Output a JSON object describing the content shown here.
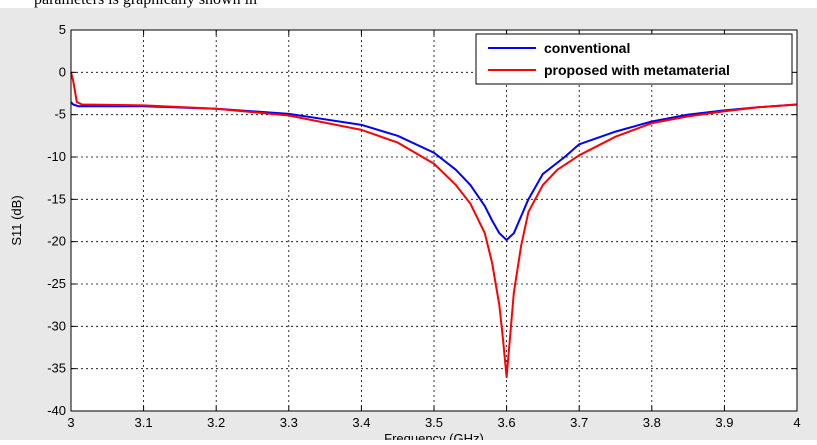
{
  "top_text": "parameters is graphically shown in",
  "chart_data": {
    "type": "line",
    "title": "",
    "xlabel": "Frequency (GHz)",
    "ylabel": "S11 (dB)",
    "xlim": [
      3,
      4
    ],
    "ylim": [
      -40,
      5
    ],
    "xticks": [
      3,
      3.1,
      3.2,
      3.3,
      3.4,
      3.5,
      3.6,
      3.7,
      3.8,
      3.9,
      4
    ],
    "xtick_labels": [
      "3",
      "3.1",
      "3.2",
      "3.3",
      "3.4",
      "3.5",
      "3.6",
      "3.7",
      "3.8",
      "3.9",
      "4"
    ],
    "yticks": [
      5,
      0,
      -5,
      -10,
      -15,
      -20,
      -25,
      -30,
      -35,
      -40
    ],
    "ytick_labels": [
      "5",
      "0",
      "-5",
      "-10",
      "-15",
      "-20",
      "-25",
      "-30",
      "-35",
      "-40"
    ],
    "grid": true,
    "legend_position": "top-right",
    "series": [
      {
        "name": "conventional",
        "color": "#0000ff",
        "x": [
          3.0,
          3.003,
          3.01,
          3.1,
          3.2,
          3.3,
          3.4,
          3.45,
          3.5,
          3.53,
          3.55,
          3.57,
          3.58,
          3.59,
          3.6,
          3.61,
          3.62,
          3.63,
          3.65,
          3.68,
          3.7,
          3.75,
          3.8,
          3.85,
          3.9,
          3.95,
          4.0
        ],
        "values": [
          -3.5,
          -3.8,
          -4.0,
          -4.0,
          -4.3,
          -4.9,
          -6.2,
          -7.5,
          -9.5,
          -11.5,
          -13.3,
          -15.8,
          -17.5,
          -19.0,
          -19.8,
          -19.0,
          -17.0,
          -15.0,
          -12.0,
          -10.0,
          -8.5,
          -7.0,
          -5.8,
          -5.0,
          -4.5,
          -4.1,
          -3.8
        ]
      },
      {
        "name": "proposed with metamaterial",
        "color": "#ff0000",
        "x": [
          3.0,
          3.003,
          3.008,
          3.015,
          3.1,
          3.2,
          3.3,
          3.4,
          3.45,
          3.5,
          3.53,
          3.55,
          3.57,
          3.58,
          3.59,
          3.595,
          3.6,
          3.605,
          3.61,
          3.62,
          3.63,
          3.65,
          3.67,
          3.7,
          3.75,
          3.8,
          3.85,
          3.9,
          3.95,
          4.0
        ],
        "values": [
          0.0,
          -1.0,
          -3.5,
          -3.8,
          -3.9,
          -4.3,
          -5.1,
          -6.8,
          -8.3,
          -10.8,
          -13.3,
          -15.5,
          -19.0,
          -22.5,
          -27.5,
          -31.5,
          -36.0,
          -31.0,
          -26.0,
          -20.5,
          -16.5,
          -13.3,
          -11.5,
          -9.8,
          -7.6,
          -6.0,
          -5.2,
          -4.6,
          -4.1,
          -3.8
        ]
      }
    ]
  }
}
